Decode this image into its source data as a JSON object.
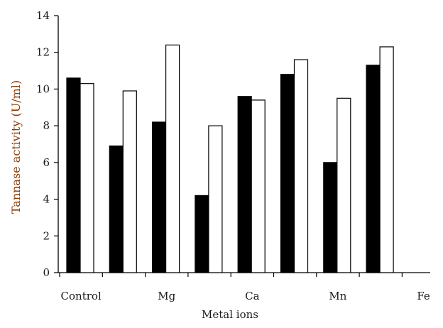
{
  "chart_data": {
    "type": "bar",
    "categories": [
      "Control",
      "",
      "Mg",
      "",
      "Ca",
      "",
      "Mn",
      "",
      "Fe"
    ],
    "series": [
      {
        "values": [
          10.6,
          6.9,
          8.2,
          4.2,
          9.6,
          10.8,
          6.0,
          11.3,
          0
        ],
        "color": "#000000"
      },
      {
        "values": [
          10.3,
          9.9,
          12.4,
          8.0,
          9.4,
          11.6,
          9.5,
          12.3,
          0
        ],
        "color": "#ffffff"
      }
    ],
    "xlabel": "Metal ions",
    "ylabel": "Tannase activity (U/ml)",
    "ylim": [
      0,
      14
    ],
    "yticks": [
      0,
      2,
      4,
      6,
      8,
      10,
      12,
      14
    ],
    "xtick_labels": [
      "Control",
      "Mg",
      "Ca",
      "Mn",
      "Fe"
    ],
    "grid": false,
    "legend": "none"
  }
}
